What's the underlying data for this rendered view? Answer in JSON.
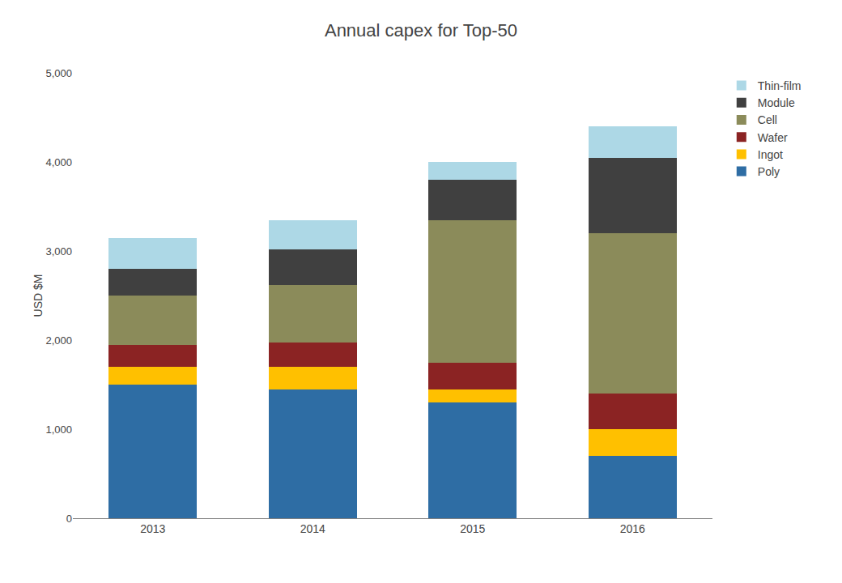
{
  "chart_data": {
    "type": "bar",
    "stacked": true,
    "title": "Annual capex for Top-50",
    "ylabel": "USD $M",
    "categories": [
      "2013",
      "2014",
      "2015",
      "2016"
    ],
    "series": [
      {
        "name": "Poly",
        "color": "#2E6DA4",
        "values": [
          1500,
          1450,
          1300,
          700
        ]
      },
      {
        "name": "Ingot",
        "color": "#FFC000",
        "values": [
          200,
          250,
          150,
          300
        ]
      },
      {
        "name": "Wafer",
        "color": "#8B2323",
        "values": [
          250,
          270,
          300,
          400
        ]
      },
      {
        "name": "Cell",
        "color": "#8B8B5A",
        "values": [
          550,
          650,
          1600,
          1800
        ]
      },
      {
        "name": "Module",
        "color": "#404040",
        "values": [
          300,
          400,
          450,
          850
        ]
      },
      {
        "name": "Thin-film",
        "color": "#ADD8E6",
        "values": [
          350,
          330,
          200,
          350
        ]
      }
    ],
    "ylim": [
      0,
      5000
    ],
    "yticks": [
      0,
      {
        "value": 1000,
        "label": "1,000"
      },
      {
        "value": 2000,
        "label": "2,000"
      },
      {
        "value": 3000,
        "label": "3,000"
      },
      {
        "value": 4000,
        "label": "4,000"
      },
      {
        "value": 5000,
        "label": "5,000"
      }
    ],
    "grid": false,
    "legend": "right"
  }
}
